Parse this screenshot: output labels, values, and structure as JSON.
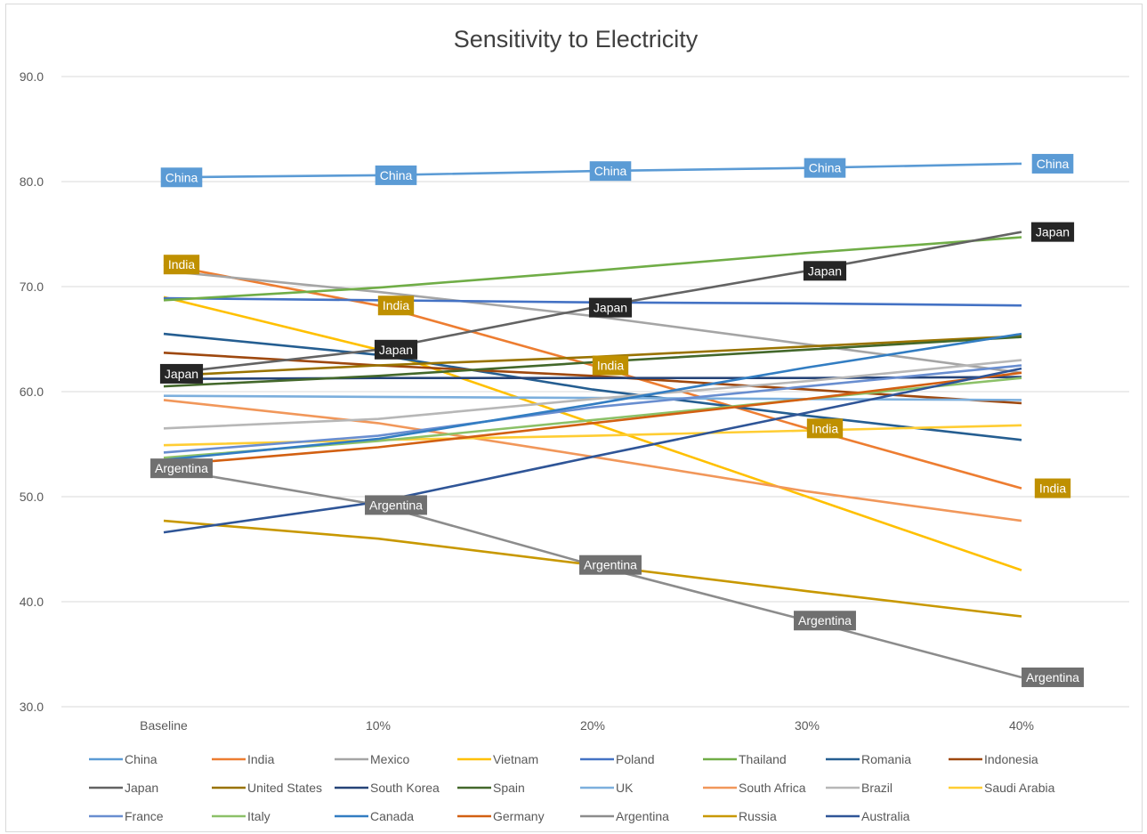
{
  "chart_data": {
    "type": "line",
    "title": "Sensitivity to Electricity",
    "categories": [
      "Baseline",
      "10%",
      "20%",
      "30%",
      "40%"
    ],
    "ylim": [
      30,
      90
    ],
    "yticks": [
      "30.0",
      "40.0",
      "50.0",
      "60.0",
      "70.0",
      "80.0",
      "90.0"
    ],
    "grid": true,
    "legend_position": "bottom",
    "series": [
      {
        "name": "China",
        "color": "#5B9BD5",
        "values": [
          80.4,
          80.6,
          81.0,
          81.3,
          81.7
        ],
        "labeled": true,
        "label_color": "#5B9BD5"
      },
      {
        "name": "India",
        "color": "#ED7D31",
        "values": [
          72.1,
          68.2,
          62.5,
          56.5,
          50.8
        ],
        "labeled": true,
        "label_color": "#BF9000"
      },
      {
        "name": "Mexico",
        "color": "#A5A5A5",
        "values": [
          71.5,
          69.5,
          67.2,
          64.5,
          61.8
        ]
      },
      {
        "name": "Vietnam",
        "color": "#FFC000",
        "values": [
          69.0,
          64.0,
          57.0,
          50.0,
          43.0
        ]
      },
      {
        "name": "Poland",
        "color": "#4472C4",
        "values": [
          68.9,
          68.7,
          68.5,
          68.4,
          68.2
        ]
      },
      {
        "name": "Thailand",
        "color": "#70AD47",
        "values": [
          68.7,
          69.9,
          71.5,
          73.2,
          74.7
        ]
      },
      {
        "name": "Romania",
        "color": "#255E91",
        "values": [
          65.5,
          63.5,
          60.2,
          57.7,
          55.4
        ]
      },
      {
        "name": "Indonesia",
        "color": "#9E480E",
        "values": [
          63.7,
          62.5,
          61.5,
          60.2,
          58.9
        ]
      },
      {
        "name": "Japan",
        "color": "#636363",
        "values": [
          61.7,
          64.0,
          68.0,
          71.5,
          75.2
        ],
        "labeled": true,
        "label_color": "#262626"
      },
      {
        "name": "United States",
        "color": "#997300",
        "values": [
          61.5,
          62.5,
          63.3,
          64.3,
          65.3
        ]
      },
      {
        "name": "South Korea",
        "color": "#264478",
        "values": [
          61.2,
          61.3,
          61.3,
          61.3,
          61.4
        ]
      },
      {
        "name": "Spain",
        "color": "#43682B",
        "values": [
          60.5,
          61.5,
          62.8,
          64.0,
          65.2
        ]
      },
      {
        "name": "UK",
        "color": "#7CAFDD",
        "values": [
          59.6,
          59.5,
          59.4,
          59.3,
          59.2
        ]
      },
      {
        "name": "South Africa",
        "color": "#F1975A",
        "values": [
          59.2,
          57.0,
          53.8,
          50.5,
          47.7
        ]
      },
      {
        "name": "Brazil",
        "color": "#B7B7B7",
        "values": [
          56.5,
          57.4,
          59.3,
          61.0,
          63.0
        ]
      },
      {
        "name": "Saudi Arabia",
        "color": "#FFCD33",
        "values": [
          54.9,
          55.4,
          55.8,
          56.3,
          56.8
        ]
      },
      {
        "name": "France",
        "color": "#698ED0",
        "values": [
          54.2,
          55.8,
          58.5,
          60.5,
          62.5
        ]
      },
      {
        "name": "Italy",
        "color": "#8CC168",
        "values": [
          53.7,
          55.3,
          57.3,
          59.3,
          61.3
        ]
      },
      {
        "name": "Canada",
        "color": "#327DC2",
        "values": [
          53.5,
          55.5,
          58.8,
          62.3,
          65.5
        ]
      },
      {
        "name": "Germany",
        "color": "#D26012",
        "values": [
          53.0,
          54.7,
          57.0,
          59.3,
          61.8
        ]
      },
      {
        "name": "Argentina",
        "color": "#8C8C8C",
        "values": [
          52.7,
          49.2,
          43.5,
          38.2,
          32.8
        ],
        "labeled": true,
        "label_color": "#707070"
      },
      {
        "name": "Russia",
        "color": "#C89800",
        "values": [
          47.7,
          46.0,
          43.5,
          41.0,
          38.6
        ]
      },
      {
        "name": "Australia",
        "color": "#2F5597",
        "values": [
          46.6,
          49.5,
          53.8,
          58.0,
          62.2
        ]
      }
    ]
  }
}
